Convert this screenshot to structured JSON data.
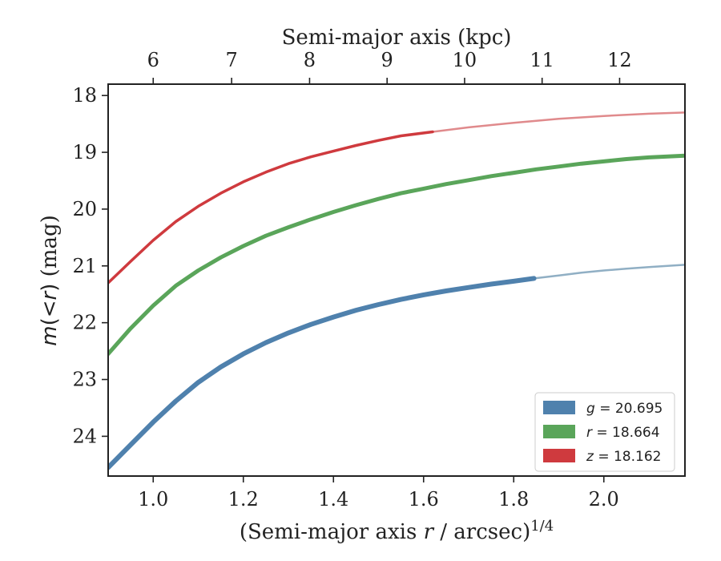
{
  "chart_data": {
    "type": "line",
    "xlabel": "(Semi-major axis r / arcsec)^1/4",
    "xlabel_parts": {
      "main": "(Semi-major axis ",
      "var": "r",
      "mid": " / arcsec)",
      "sup": "1/4"
    },
    "ylabel": "m(<r) (mag)",
    "ylabel_parts": {
      "var": "m",
      "paren_open": "(",
      "lt": "<",
      "r": "r",
      "paren_close": ")",
      "unit": " (mag)"
    },
    "top_xlabel": "Semi-major axis (kpc)",
    "xlim": [
      0.9,
      2.18
    ],
    "ylim": [
      24.7,
      17.8
    ],
    "y_inverted": true,
    "x_ticks": [
      1.0,
      1.2,
      1.4,
      1.6,
      1.8,
      2.0
    ],
    "x_tick_labels": [
      "1.0",
      "1.2",
      "1.4",
      "1.6",
      "1.8",
      "2.0"
    ],
    "y_ticks": [
      18,
      19,
      20,
      21,
      22,
      23,
      24
    ],
    "y_tick_labels": [
      "18",
      "19",
      "20",
      "21",
      "22",
      "23",
      "24"
    ],
    "top_ticks": [
      6,
      7,
      8,
      9,
      10,
      11,
      12
    ],
    "top_tick_labels": [
      "6",
      "7",
      "8",
      "9",
      "10",
      "11",
      "12"
    ],
    "top_tick_x_positions": [
      1.0,
      1.174,
      1.347,
      1.519,
      1.691,
      1.863,
      2.035
    ],
    "grid": false,
    "legend_position": "bottom-right",
    "series": [
      {
        "name": "g",
        "legend_label": {
          "var": "g",
          "value": " = 20.695"
        },
        "color": "#4f81ad",
        "faded_color": "#90afc4",
        "measured_until": 1.845,
        "x": [
          0.9,
          0.95,
          1.0,
          1.05,
          1.1,
          1.15,
          1.2,
          1.25,
          1.3,
          1.35,
          1.4,
          1.45,
          1.5,
          1.55,
          1.6,
          1.65,
          1.7,
          1.75,
          1.8,
          1.845,
          1.9,
          1.95,
          2.0,
          2.05,
          2.1,
          2.18
        ],
        "y": [
          24.55,
          24.15,
          23.75,
          23.38,
          23.05,
          22.78,
          22.55,
          22.35,
          22.18,
          22.03,
          21.9,
          21.78,
          21.68,
          21.59,
          21.51,
          21.44,
          21.38,
          21.32,
          21.27,
          21.22,
          21.17,
          21.12,
          21.08,
          21.05,
          21.02,
          20.98
        ]
      },
      {
        "name": "r",
        "legend_label": {
          "var": "r",
          "value": " = 18.664"
        },
        "color": "#5aa55a",
        "faded_color": "#5aa55a",
        "measured_until": 2.18,
        "x": [
          0.9,
          0.95,
          1.0,
          1.05,
          1.1,
          1.15,
          1.2,
          1.25,
          1.3,
          1.35,
          1.4,
          1.45,
          1.5,
          1.55,
          1.6,
          1.65,
          1.7,
          1.75,
          1.8,
          1.85,
          1.9,
          1.95,
          2.0,
          2.05,
          2.1,
          2.18
        ],
        "y": [
          22.55,
          22.1,
          21.7,
          21.35,
          21.08,
          20.85,
          20.65,
          20.47,
          20.32,
          20.18,
          20.05,
          19.93,
          19.82,
          19.72,
          19.64,
          19.56,
          19.49,
          19.42,
          19.36,
          19.3,
          19.25,
          19.2,
          19.16,
          19.12,
          19.09,
          19.06
        ]
      },
      {
        "name": "z",
        "legend_label": {
          "var": "z",
          "value": " = 18.162"
        },
        "color": "#cf3a3e",
        "faded_color": "#e08a8c",
        "measured_until": 1.62,
        "x": [
          0.9,
          0.95,
          1.0,
          1.05,
          1.1,
          1.15,
          1.2,
          1.25,
          1.3,
          1.35,
          1.4,
          1.45,
          1.5,
          1.55,
          1.62,
          1.7,
          1.8,
          1.9,
          2.0,
          2.1,
          2.18
        ],
        "y": [
          21.3,
          20.92,
          20.55,
          20.22,
          19.95,
          19.72,
          19.52,
          19.35,
          19.2,
          19.08,
          18.98,
          18.88,
          18.79,
          18.71,
          18.64,
          18.56,
          18.48,
          18.41,
          18.36,
          18.32,
          18.3
        ]
      }
    ]
  }
}
